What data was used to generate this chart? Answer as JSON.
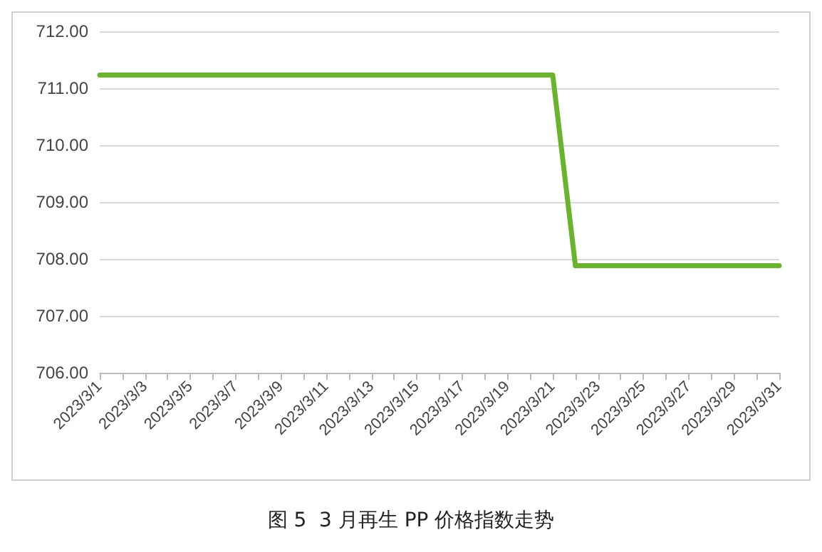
{
  "chart_data": {
    "type": "line",
    "title": "图 5  3 月再生 PP 价格指数走势",
    "categories": [
      "2023/3/1",
      null,
      "2023/3/3",
      null,
      "2023/3/5",
      null,
      "2023/3/7",
      null,
      "2023/3/9",
      null,
      "2023/3/11",
      null,
      "2023/3/13",
      null,
      "2023/3/15",
      null,
      "2023/3/17",
      null,
      "2023/3/19",
      null,
      "2023/3/21",
      null,
      "2023/3/23",
      null,
      "2023/3/25",
      null,
      "2023/3/27",
      null,
      "2023/3/29",
      null,
      "2023/3/31"
    ],
    "series": [
      {
        "color": "#6ab42d",
        "values": [
          711.23,
          711.23,
          711.23,
          711.23,
          711.23,
          711.23,
          711.23,
          711.23,
          711.23,
          711.23,
          711.23,
          711.23,
          711.23,
          711.23,
          711.23,
          711.23,
          711.23,
          711.23,
          711.23,
          711.23,
          711.23,
          707.88,
          707.88,
          707.88,
          707.88,
          707.88,
          707.88,
          707.88,
          707.88,
          707.88,
          707.88
        ]
      }
    ],
    "ylim": [
      706,
      712
    ],
    "yticks": [
      {
        "value": 706,
        "label": "706.00"
      },
      {
        "value": 707,
        "label": "707.00"
      },
      {
        "value": 708,
        "label": "708.00"
      },
      {
        "value": 709,
        "label": "709.00"
      },
      {
        "value": 710,
        "label": "710.00"
      },
      {
        "value": 711,
        "label": "711.00"
      },
      {
        "value": 712,
        "label": "712.00"
      }
    ],
    "grid": "y",
    "marker": "none",
    "line_style": "solid"
  }
}
